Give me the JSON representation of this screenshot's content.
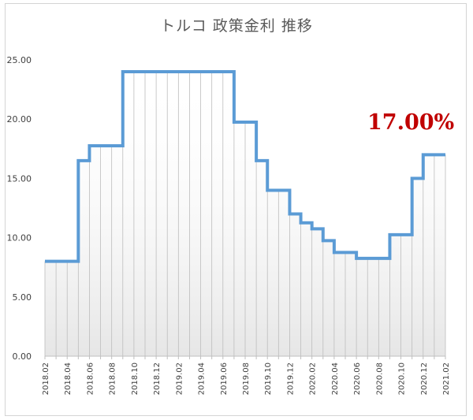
{
  "chart_data": {
    "type": "line",
    "title": "トルコ 政策金利 推移",
    "annotation": "17.00%",
    "xlabel": "",
    "ylabel": "",
    "ylim": [
      0,
      25
    ],
    "yticks": [
      "0.00",
      "5.00",
      "10.00",
      "15.00",
      "20.00",
      "25.00"
    ],
    "x_tick_labels": [
      "2018.02",
      "2018.04",
      "2018.06",
      "2018.08",
      "2018.10",
      "2018.12",
      "2019.02",
      "2019.04",
      "2019.06",
      "2019.08",
      "2019.10",
      "2019.12",
      "2020.02",
      "2020.04",
      "2020.06",
      "2020.08",
      "2020.10",
      "2020.12",
      "2021.02"
    ],
    "step": true,
    "grid": "vertical monthly lines with shaded fill",
    "color": "#5b9bd5",
    "series": [
      {
        "x": [
          "2018.02",
          "2018.03",
          "2018.04",
          "2018.05",
          "2018.06",
          "2018.07",
          "2018.08",
          "2018.09",
          "2018.10",
          "2018.11",
          "2018.12",
          "2019.01",
          "2019.02",
          "2019.03",
          "2019.04",
          "2019.05",
          "2019.06",
          "2019.07",
          "2019.08",
          "2019.09",
          "2019.10",
          "2019.11",
          "2019.12",
          "2020.01",
          "2020.02",
          "2020.03",
          "2020.04",
          "2020.05",
          "2020.06",
          "2020.07",
          "2020.08",
          "2020.09",
          "2020.10",
          "2020.11",
          "2020.12",
          "2021.01",
          "2021.02"
        ],
        "values": [
          8.0,
          8.0,
          8.0,
          16.5,
          17.75,
          17.75,
          17.75,
          24.0,
          24.0,
          24.0,
          24.0,
          24.0,
          24.0,
          24.0,
          24.0,
          24.0,
          24.0,
          19.75,
          19.75,
          16.5,
          14.0,
          14.0,
          12.0,
          11.25,
          10.75,
          9.75,
          8.75,
          8.75,
          8.25,
          8.25,
          8.25,
          10.25,
          10.25,
          15.0,
          17.0,
          17.0,
          17.0
        ]
      }
    ]
  }
}
